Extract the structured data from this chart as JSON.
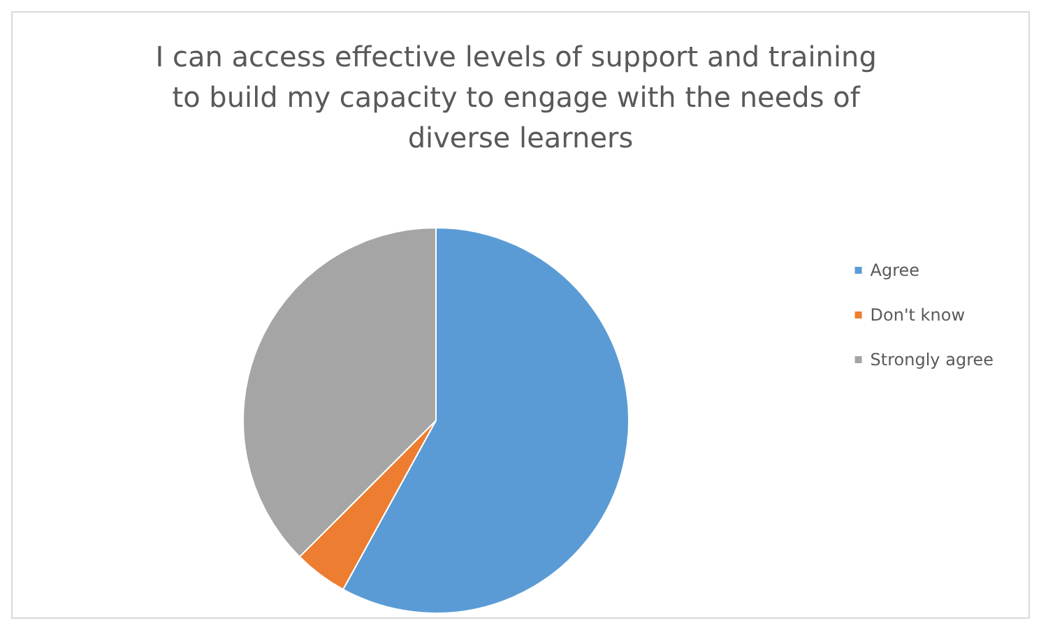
{
  "chart_data": {
    "type": "pie",
    "title": "I can access effective levels of support and training to build my capacity to engage with the needs of diverse learners",
    "categories": [
      "Agree",
      "Don't know",
      "Strongly agree"
    ],
    "values": [
      58,
      4.5,
      37.5
    ],
    "colors": [
      "#5b9bd5",
      "#ed7d31",
      "#a5a5a5"
    ],
    "legend": "right"
  }
}
